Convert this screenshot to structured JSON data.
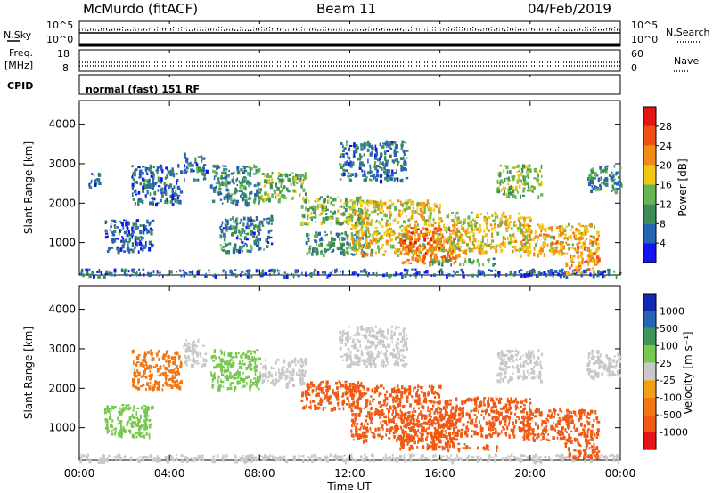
{
  "header": {
    "station": "McMurdo (fitACF)",
    "beam": "Beam 11",
    "date": "04/Feb/2019"
  },
  "noise_panel": {
    "left_label": "N.Sky",
    "right_label": "N.Search",
    "ticks_left": [
      "10^5",
      "10^0"
    ],
    "ticks_right": [
      "10^5",
      "10^0"
    ]
  },
  "freq_panel": {
    "left_label_line1": "Freq.",
    "left_label_line2": "[MHz]",
    "right_label": "Nave",
    "ticks_left": [
      "18",
      "8"
    ],
    "ticks_right": [
      "60",
      "0"
    ]
  },
  "cpid_panel": {
    "label": "CPID",
    "text": "normal (fast) 151 RF"
  },
  "colors": {
    "power_scale": [
      "#1414f0",
      "#2864b4",
      "#3c8c5a",
      "#64b450",
      "#f0c814",
      "#f08c14",
      "#f05014",
      "#e61414"
    ],
    "velocity_scale": [
      "#e61414",
      "#f05a14",
      "#f07814",
      "#f0a014",
      "#c8c8c8",
      "#78c850",
      "#3c965a",
      "#2864b4",
      "#1428b4"
    ]
  },
  "chart_data": [
    {
      "type": "heatmap",
      "name": "power",
      "xlabel": "",
      "ylabel": "Slant Range [km]",
      "x_ticks": [
        "00:00",
        "04:00",
        "08:00",
        "12:00",
        "16:00",
        "20:00",
        "00:00"
      ],
      "y_ticks": [
        1000,
        2000,
        3000,
        4000
      ],
      "ylim": [
        180,
        4600
      ],
      "xlim_hours": [
        0,
        24
      ],
      "colorbar": {
        "label": "Power [dB]",
        "ticks": [
          4,
          8,
          12,
          16,
          20,
          24,
          28
        ],
        "range": [
          0,
          32
        ]
      },
      "echo_regions": [
        {
          "t_start": 0,
          "t_end": 24,
          "range_min": 180,
          "range_max": 350,
          "level": 6
        },
        {
          "t_start": 0.4,
          "t_end": 0.9,
          "range_min": 2400,
          "range_max": 2800,
          "level": 6
        },
        {
          "t_start": 1.1,
          "t_end": 3.2,
          "range_min": 800,
          "range_max": 1600,
          "level": 6
        },
        {
          "t_start": 2.3,
          "t_end": 4.5,
          "range_min": 2000,
          "range_max": 3000,
          "level": 7
        },
        {
          "t_start": 4.6,
          "t_end": 5.6,
          "range_min": 2600,
          "range_max": 3300,
          "level": 8
        },
        {
          "t_start": 5.8,
          "t_end": 8.0,
          "range_min": 2000,
          "range_max": 3000,
          "level": 9
        },
        {
          "t_start": 6.2,
          "t_end": 8.5,
          "range_min": 800,
          "range_max": 1700,
          "level": 8
        },
        {
          "t_start": 8.0,
          "t_end": 10.0,
          "range_min": 2100,
          "range_max": 2800,
          "level": 13
        },
        {
          "t_start": 9.8,
          "t_end": 12.5,
          "range_min": 1500,
          "range_max": 2200,
          "level": 14
        },
        {
          "t_start": 10.0,
          "t_end": 13.0,
          "range_min": 700,
          "range_max": 1300,
          "level": 10
        },
        {
          "t_start": 11.5,
          "t_end": 14.5,
          "range_min": 2600,
          "range_max": 3600,
          "level": 8
        },
        {
          "t_start": 12.0,
          "t_end": 16.0,
          "range_min": 700,
          "range_max": 2100,
          "level": 18
        },
        {
          "t_start": 14.2,
          "t_end": 16.8,
          "range_min": 500,
          "range_max": 1400,
          "level": 24
        },
        {
          "t_start": 15.5,
          "t_end": 18.5,
          "range_min": 470,
          "range_max": 620,
          "level": 12
        },
        {
          "t_start": 16.0,
          "t_end": 20.0,
          "range_min": 800,
          "range_max": 1800,
          "level": 18
        },
        {
          "t_start": 18.5,
          "t_end": 20.5,
          "range_min": 2200,
          "range_max": 3000,
          "level": 14
        },
        {
          "t_start": 19.5,
          "t_end": 23.0,
          "range_min": 700,
          "range_max": 1500,
          "level": 20
        },
        {
          "t_start": 21.5,
          "t_end": 23.0,
          "range_min": 250,
          "range_max": 700,
          "level": 22
        },
        {
          "t_start": 22.5,
          "t_end": 24.0,
          "range_min": 2300,
          "range_max": 3000,
          "level": 9
        }
      ]
    },
    {
      "type": "heatmap",
      "name": "velocity",
      "xlabel": "Time UT",
      "ylabel": "Slant Range [km]",
      "x_ticks": [
        "00:00",
        "04:00",
        "08:00",
        "12:00",
        "16:00",
        "20:00",
        "00:00"
      ],
      "y_ticks": [
        1000,
        2000,
        3000,
        4000
      ],
      "ylim": [
        180,
        4600
      ],
      "xlim_hours": [
        0,
        24
      ],
      "colorbar": {
        "label": "Velocity [m s⁻¹]",
        "ticks": [
          1000,
          500,
          100,
          25,
          -25,
          -100,
          -500,
          -1000
        ]
      },
      "echo_regions": [
        {
          "t_start": 0,
          "t_end": 24,
          "range_min": 180,
          "range_max": 350,
          "level": 25
        },
        {
          "t_start": 1.1,
          "t_end": 3.2,
          "range_min": 800,
          "range_max": 1600,
          "level": 100
        },
        {
          "t_start": 2.3,
          "t_end": 4.5,
          "range_min": 2000,
          "range_max": 3000,
          "level": -100
        },
        {
          "t_start": 4.6,
          "t_end": 5.6,
          "range_min": 2600,
          "range_max": 3300,
          "level": 25
        },
        {
          "t_start": 5.8,
          "t_end": 8.0,
          "range_min": 2000,
          "range_max": 3000,
          "level": 100
        },
        {
          "t_start": 8.0,
          "t_end": 10.0,
          "range_min": 2100,
          "range_max": 2800,
          "level": 25
        },
        {
          "t_start": 9.8,
          "t_end": 12.5,
          "range_min": 1500,
          "range_max": 2200,
          "level": -500
        },
        {
          "t_start": 11.5,
          "t_end": 14.5,
          "range_min": 2600,
          "range_max": 3600,
          "level": 25
        },
        {
          "t_start": 12.0,
          "t_end": 16.0,
          "range_min": 700,
          "range_max": 2100,
          "level": -500
        },
        {
          "t_start": 14.2,
          "t_end": 16.8,
          "range_min": 500,
          "range_max": 1400,
          "level": -500
        },
        {
          "t_start": 15.5,
          "t_end": 18.5,
          "range_min": 470,
          "range_max": 620,
          "level": -500
        },
        {
          "t_start": 16.0,
          "t_end": 20.0,
          "range_min": 800,
          "range_max": 1800,
          "level": -500
        },
        {
          "t_start": 18.5,
          "t_end": 20.5,
          "range_min": 2200,
          "range_max": 3000,
          "level": 25
        },
        {
          "t_start": 19.5,
          "t_end": 23.0,
          "range_min": 700,
          "range_max": 1500,
          "level": -500
        },
        {
          "t_start": 21.5,
          "t_end": 23.0,
          "range_min": 250,
          "range_max": 700,
          "level": -500
        },
        {
          "t_start": 22.5,
          "t_end": 24.0,
          "range_min": 2300,
          "range_max": 3000,
          "level": 25
        }
      ]
    }
  ]
}
